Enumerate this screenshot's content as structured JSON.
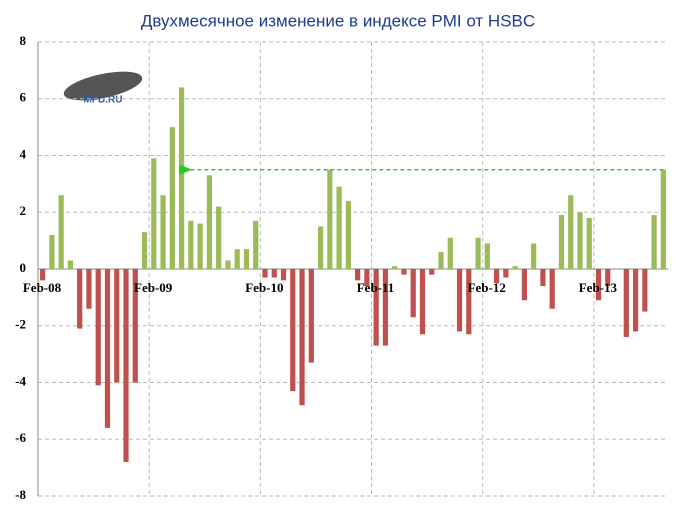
{
  "chart_data": {
    "type": "bar",
    "title": "Двухмесячное изменение в индексе PMI от HSBC",
    "logo": "MFD.RU",
    "categories": [
      "Feb-08",
      null,
      null,
      null,
      null,
      null,
      null,
      null,
      null,
      null,
      null,
      null,
      "Feb-09",
      null,
      null,
      null,
      null,
      null,
      null,
      null,
      null,
      null,
      null,
      null,
      "Feb-10",
      null,
      null,
      null,
      null,
      null,
      null,
      null,
      null,
      null,
      null,
      null,
      "Feb-11",
      null,
      null,
      null,
      null,
      null,
      null,
      null,
      null,
      null,
      null,
      null,
      "Feb-12",
      null,
      null,
      null,
      null,
      null,
      null,
      null,
      null,
      null,
      null,
      null,
      "Feb-13",
      null,
      null,
      null,
      null,
      null,
      null,
      null
    ],
    "values": [
      -0.4,
      1.2,
      2.6,
      0.3,
      -2.1,
      -1.4,
      -4.1,
      -5.6,
      -4.0,
      -6.8,
      -4.0,
      1.3,
      3.9,
      2.6,
      5.0,
      6.4,
      1.7,
      1.6,
      3.3,
      2.2,
      0.3,
      0.7,
      0.7,
      1.7,
      -0.3,
      -0.3,
      -0.4,
      -4.3,
      -4.8,
      -3.3,
      1.5,
      3.5,
      2.9,
      2.4,
      -0.4,
      -0.6,
      -2.7,
      -2.7,
      0.1,
      -0.2,
      -1.7,
      -2.3,
      -0.2,
      0.6,
      1.1,
      -2.2,
      -2.3,
      1.1,
      0.9,
      -0.5,
      -0.3,
      0.1,
      -1.1,
      0.9,
      -0.6,
      -1.4,
      1.9,
      2.6,
      2.0,
      1.8,
      -1.1,
      -0.6,
      0,
      -2.4,
      -2.2,
      -1.5,
      1.9,
      3.5
    ],
    "positive_color": "#9bbb59",
    "negative_color": "#c0504d",
    "ylim": [
      -8,
      8
    ],
    "yticks": [
      -8,
      -6,
      -4,
      -2,
      0,
      2,
      4,
      6,
      8
    ],
    "grid": true
  }
}
